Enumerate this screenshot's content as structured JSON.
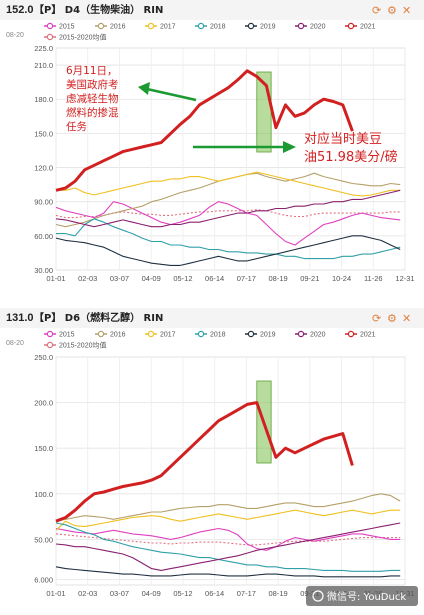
{
  "chart_data": [
    {
      "type": "line",
      "header": {
        "code": "【P】 D4（生物柴油） RIN",
        "value": "152.0",
        "date": "08-20"
      },
      "legend": [
        "2015",
        "2016",
        "2017",
        "2018",
        "2019",
        "2020",
        "2021",
        "2015-2020均值"
      ],
      "colors": [
        "#e040c0",
        "#b6a06a",
        "#f0c020",
        "#30a0a8",
        "#203040",
        "#8a2070",
        "#d22020",
        "#e07080"
      ],
      "ylim": [
        30,
        225
      ],
      "yticks": [
        30,
        60,
        90,
        120,
        150,
        180,
        210,
        225
      ],
      "ytick_labels": [
        "30.00",
        "60.00",
        "90.00",
        "120.0",
        "150.0",
        "180.0",
        "210.0",
        "225.0"
      ],
      "xtick_labels": [
        "01-01",
        "02-03",
        "03-07",
        "04-09",
        "05-12",
        "06-14",
        "07-17",
        "08-19",
        "09-21",
        "10-24",
        "11-26",
        "12-31"
      ],
      "x": [
        0,
        10,
        20,
        30,
        40,
        50,
        60,
        70,
        80,
        90,
        100,
        110,
        120,
        130,
        140,
        150,
        160,
        170,
        180,
        190,
        200,
        210,
        220,
        230,
        240,
        250,
        260,
        270,
        280,
        290,
        300,
        310,
        320,
        330,
        340,
        350,
        360
      ],
      "series": [
        {
          "name": "2015",
          "values": [
            85,
            82,
            80,
            78,
            76,
            80,
            90,
            88,
            84,
            80,
            76,
            72,
            70,
            72,
            75,
            78,
            85,
            90,
            88,
            84,
            80,
            78,
            70,
            62,
            55,
            52,
            58,
            64,
            70,
            72,
            75,
            78,
            80,
            78,
            76,
            75,
            74
          ]
        },
        {
          "name": "2016",
          "values": [
            70,
            68,
            70,
            72,
            75,
            78,
            80,
            82,
            84,
            86,
            90,
            92,
            95,
            98,
            100,
            102,
            105,
            108,
            110,
            112,
            114,
            115,
            112,
            110,
            108,
            110,
            112,
            115,
            112,
            110,
            108,
            106,
            105,
            104,
            104,
            106,
            105
          ]
        },
        {
          "name": "2017",
          "values": [
            100,
            100,
            102,
            98,
            96,
            98,
            100,
            102,
            104,
            106,
            108,
            108,
            110,
            110,
            112,
            112,
            110,
            108,
            110,
            112,
            114,
            116,
            114,
            112,
            110,
            108,
            106,
            104,
            102,
            100,
            98,
            96,
            95,
            96,
            98,
            100,
            100
          ]
        },
        {
          "name": "2018",
          "values": [
            62,
            62,
            60,
            70,
            75,
            72,
            68,
            65,
            62,
            58,
            55,
            55,
            52,
            52,
            50,
            50,
            48,
            48,
            46,
            46,
            45,
            45,
            44,
            44,
            42,
            42,
            40,
            40,
            40,
            40,
            42,
            42,
            44,
            44,
            46,
            48,
            50
          ]
        },
        {
          "name": "2019",
          "values": [
            58,
            56,
            55,
            54,
            52,
            50,
            46,
            42,
            40,
            38,
            36,
            35,
            34,
            34,
            36,
            38,
            40,
            42,
            40,
            38,
            38,
            40,
            42,
            44,
            46,
            48,
            50,
            52,
            54,
            56,
            58,
            60,
            60,
            58,
            56,
            52,
            48
          ]
        },
        {
          "name": "2020",
          "values": [
            75,
            74,
            72,
            70,
            68,
            70,
            72,
            74,
            72,
            70,
            68,
            68,
            70,
            70,
            72,
            72,
            74,
            76,
            78,
            80,
            80,
            82,
            82,
            84,
            84,
            86,
            86,
            88,
            88,
            90,
            90,
            92,
            92,
            94,
            96,
            98,
            100
          ]
        },
        {
          "name": "2021",
          "values": [
            100,
            102,
            108,
            118,
            122,
            126,
            130,
            134,
            136,
            138,
            140,
            142,
            150,
            158,
            165,
            175,
            180,
            185,
            190,
            197,
            205,
            200,
            192,
            155,
            175,
            165,
            168,
            175,
            180,
            178,
            175,
            152,
            null,
            null,
            null,
            null,
            null
          ]
        },
        {
          "name": "2015-2020均值",
          "values": [
            78,
            76,
            76,
            77,
            77,
            78,
            80,
            81,
            80,
            79,
            79,
            78,
            78,
            79,
            80,
            81,
            81,
            82,
            82,
            82,
            82,
            83,
            82,
            80,
            78,
            77,
            77,
            79,
            80,
            80,
            80,
            80,
            80,
            80,
            80,
            81,
            81
          ]
        }
      ],
      "highlight_x": [
        210,
        225
      ],
      "annotations": {
        "note_left": [
          "6月11日，",
          "美国政府考",
          "虑减轻生物",
          "燃料的掺混",
          "任务"
        ],
        "note_right": [
          "对应当时美豆",
          "油51.98美分/磅"
        ]
      }
    },
    {
      "type": "line",
      "header": {
        "code": "【P】 D6（燃料乙醇） RIN",
        "value": "131.0",
        "date": "08-20"
      },
      "legend": [
        "2015",
        "2016",
        "2017",
        "2018",
        "2019",
        "2020",
        "2021",
        "2015-2020均值"
      ],
      "colors": [
        "#e040c0",
        "#b6a06a",
        "#f0c020",
        "#30a0a8",
        "#203040",
        "#8a2070",
        "#d22020",
        "#e07080"
      ],
      "ylim": [
        0,
        250
      ],
      "yticks": [
        6,
        50,
        100,
        150,
        200,
        250
      ],
      "ytick_labels": [
        "6.000",
        "50.00",
        "100.0",
        "150.0",
        "200.0",
        "250.0"
      ],
      "xtick_labels": [
        "01-01",
        "02-03",
        "03-07",
        "04-09",
        "05-12",
        "06-14",
        "07-17",
        "08-19",
        "09-21",
        "10-24",
        "11-26",
        "12-31"
      ],
      "x": [
        0,
        10,
        20,
        30,
        40,
        50,
        60,
        70,
        80,
        90,
        100,
        110,
        120,
        130,
        140,
        150,
        160,
        170,
        180,
        190,
        200,
        210,
        220,
        230,
        240,
        250,
        260,
        270,
        280,
        290,
        300,
        310,
        320,
        330,
        340,
        350,
        360
      ],
      "series": [
        {
          "name": "2015",
          "values": [
            62,
            60,
            58,
            57,
            56,
            58,
            60,
            58,
            56,
            55,
            54,
            52,
            50,
            52,
            55,
            58,
            60,
            62,
            60,
            55,
            45,
            40,
            38,
            42,
            48,
            52,
            50,
            48,
            50,
            52,
            54,
            56,
            56,
            54,
            52,
            50,
            50
          ]
        },
        {
          "name": "2016",
          "values": [
            70,
            72,
            74,
            76,
            75,
            74,
            72,
            74,
            76,
            78,
            80,
            80,
            82,
            84,
            85,
            86,
            86,
            88,
            88,
            86,
            84,
            84,
            86,
            88,
            90,
            90,
            88,
            86,
            86,
            88,
            90,
            92,
            95,
            98,
            100,
            98,
            92
          ]
        },
        {
          "name": "2017",
          "values": [
            60,
            70,
            65,
            64,
            66,
            68,
            70,
            72,
            74,
            75,
            76,
            75,
            72,
            70,
            72,
            74,
            76,
            78,
            76,
            74,
            72,
            74,
            76,
            78,
            80,
            82,
            80,
            78,
            76,
            78,
            80,
            82,
            80,
            78,
            80,
            82,
            82
          ]
        },
        {
          "name": "2018",
          "values": [
            68,
            66,
            62,
            58,
            55,
            50,
            48,
            45,
            42,
            40,
            38,
            36,
            35,
            34,
            32,
            30,
            30,
            28,
            26,
            24,
            22,
            22,
            20,
            20,
            18,
            18,
            18,
            17,
            16,
            16,
            16,
            15,
            15,
            15,
            15,
            16,
            16
          ]
        },
        {
          "name": "2019",
          "values": [
            20,
            18,
            17,
            16,
            15,
            14,
            13,
            12,
            12,
            11,
            10,
            10,
            10,
            11,
            12,
            12,
            12,
            11,
            10,
            10,
            10,
            11,
            12,
            12,
            11,
            10,
            10,
            10,
            9,
            9,
            9,
            9,
            9,
            9,
            9,
            10,
            10
          ]
        },
        {
          "name": "2020",
          "values": [
            45,
            44,
            42,
            42,
            40,
            38,
            36,
            34,
            30,
            24,
            18,
            16,
            18,
            20,
            22,
            24,
            26,
            28,
            30,
            32,
            35,
            38,
            40,
            42,
            44,
            46,
            48,
            50,
            52,
            54,
            56,
            58,
            60,
            62,
            64,
            66,
            68
          ]
        },
        {
          "name": "2021",
          "values": [
            70,
            74,
            82,
            92,
            100,
            102,
            105,
            108,
            110,
            112,
            115,
            120,
            130,
            140,
            150,
            160,
            170,
            180,
            186,
            192,
            198,
            200,
            170,
            140,
            150,
            145,
            150,
            155,
            160,
            163,
            166,
            131,
            null,
            null,
            null,
            null,
            null
          ]
        },
        {
          "name": "2015-2020均值",
          "values": [
            56,
            55,
            54,
            53,
            52,
            51,
            50,
            49,
            48,
            47,
            46,
            46,
            45,
            46,
            46,
            47,
            47,
            47,
            46,
            45,
            44,
            44,
            45,
            46,
            47,
            48,
            48,
            48,
            48,
            49,
            50,
            51,
            52,
            52,
            52,
            52,
            52
          ]
        }
      ],
      "highlight_x": [
        210,
        225
      ],
      "watermark": "微信号: YouDuck"
    }
  ]
}
